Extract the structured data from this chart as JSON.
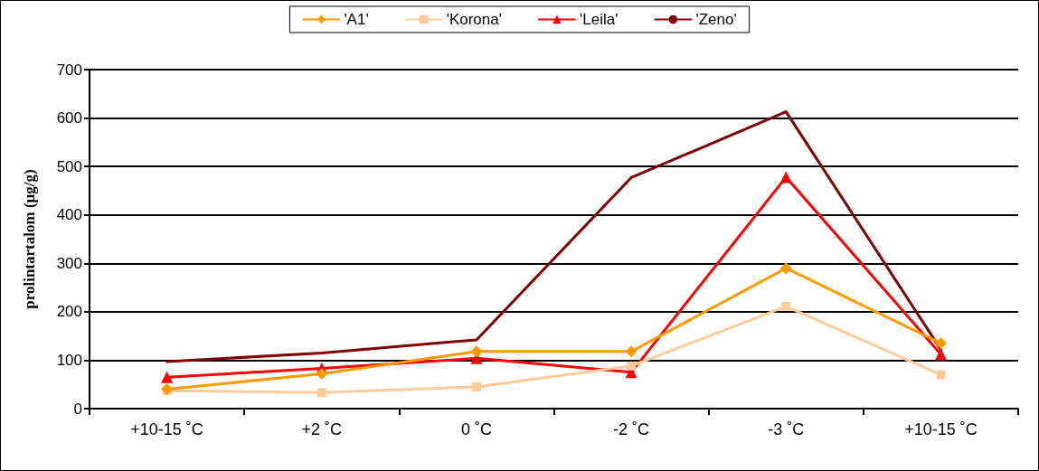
{
  "chart_data": {
    "type": "line",
    "ylabel": "prolintartalom (µg/g)",
    "categories": [
      "+10-15 ˚C",
      "+2 ˚C",
      "0 ˚C",
      "-2 ˚C",
      "-3 ˚C",
      "+10-15 ˚C"
    ],
    "series": [
      {
        "name": "'A1'",
        "color": "#ff9900",
        "marker": "diamond",
        "values": [
          40,
          72,
          118,
          118,
          290,
          135
        ]
      },
      {
        "name": "'Korona'",
        "color": "#ffcc99",
        "marker": "square",
        "values": [
          37,
          33,
          45,
          88,
          211,
          70
        ]
      },
      {
        "name": "'Leila'",
        "color": "#ff0000",
        "marker": "triangle",
        "values": [
          65,
          83,
          104,
          75,
          478,
          112
        ]
      },
      {
        "name": "'Zeno'",
        "color": "#800000",
        "marker": "none",
        "values": [
          97,
          115,
          142,
          477,
          613,
          122
        ]
      }
    ],
    "ylim": [
      0,
      700
    ],
    "yticks": [
      0,
      100,
      200,
      300,
      400,
      500,
      600,
      700
    ],
    "grid": "y",
    "legend": "top",
    "line_style": "solid"
  }
}
